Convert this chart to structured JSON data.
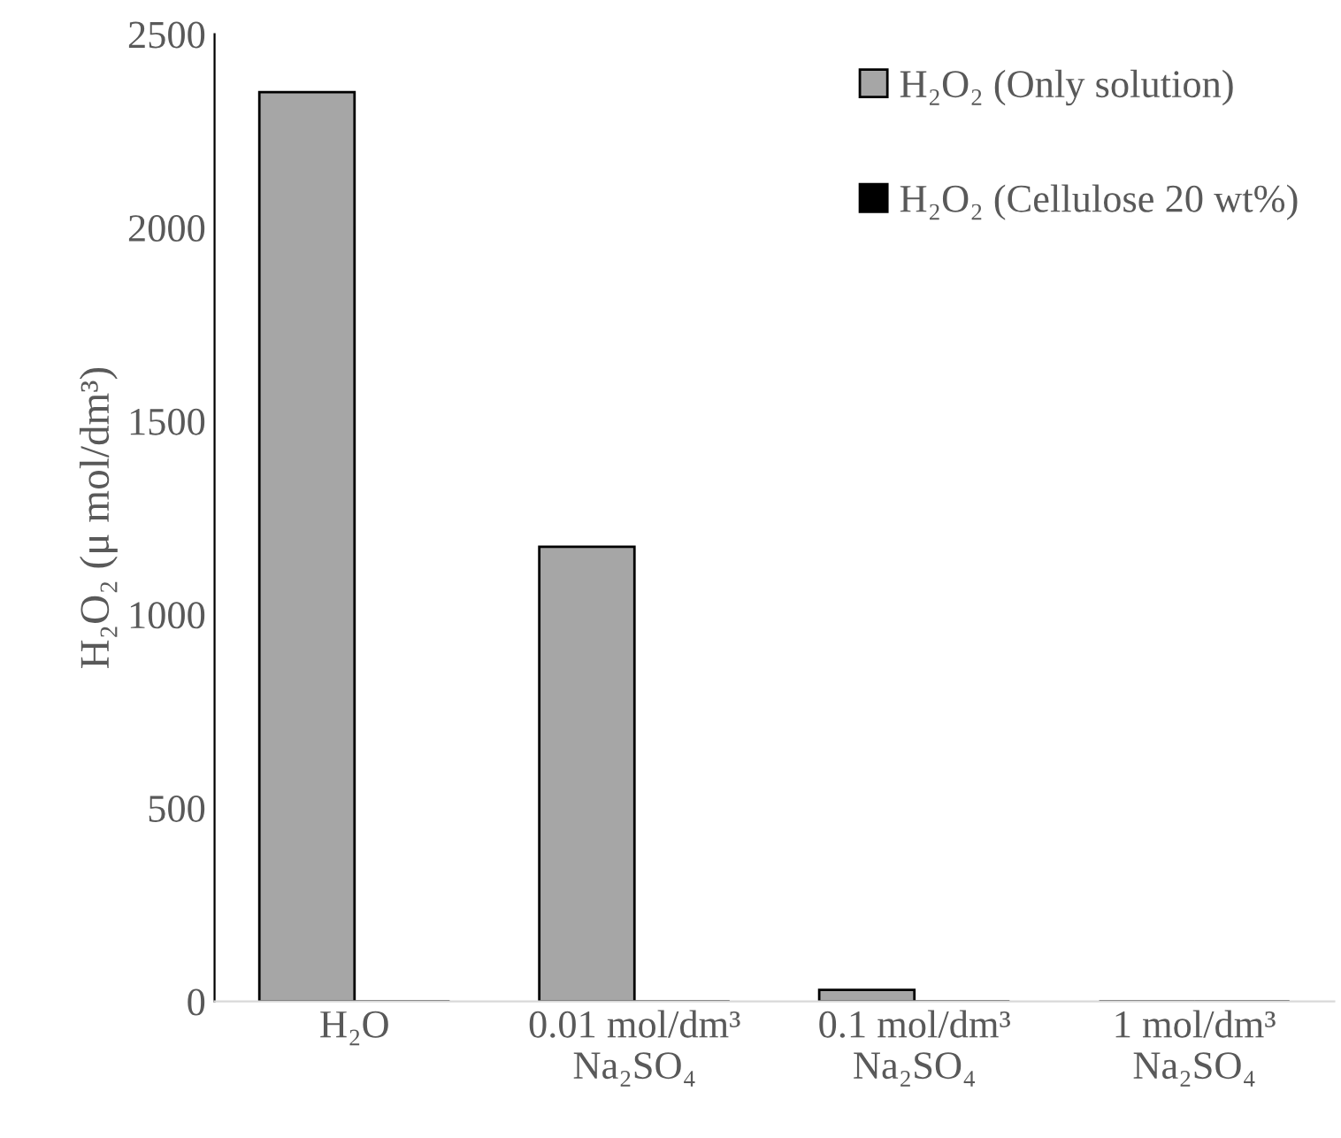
{
  "chart_data": {
    "type": "bar",
    "ylabel": "H₂O₂ (μ mol/dm³)",
    "categories": [
      "H₂O",
      "0.01 mol/dm³\nNa₂SO₄",
      "0.1 mol/dm³\nNa₂SO₄",
      "1 mol/dm³\nNa₂SO₄"
    ],
    "series": [
      {
        "name": "H₂O₂ (Only solution)",
        "color": "#a6a6a6",
        "values": [
          2350,
          1175,
          30,
          0
        ]
      },
      {
        "name": "H₂O₂ (Cellulose 20 wt%)",
        "color": "#000000",
        "values": [
          0,
          0,
          0,
          0
        ]
      }
    ],
    "ylim": [
      0,
      2500
    ],
    "yticks": [
      0,
      500,
      1000,
      1500,
      2000,
      2500
    ],
    "grid": false,
    "legend": "top right"
  }
}
